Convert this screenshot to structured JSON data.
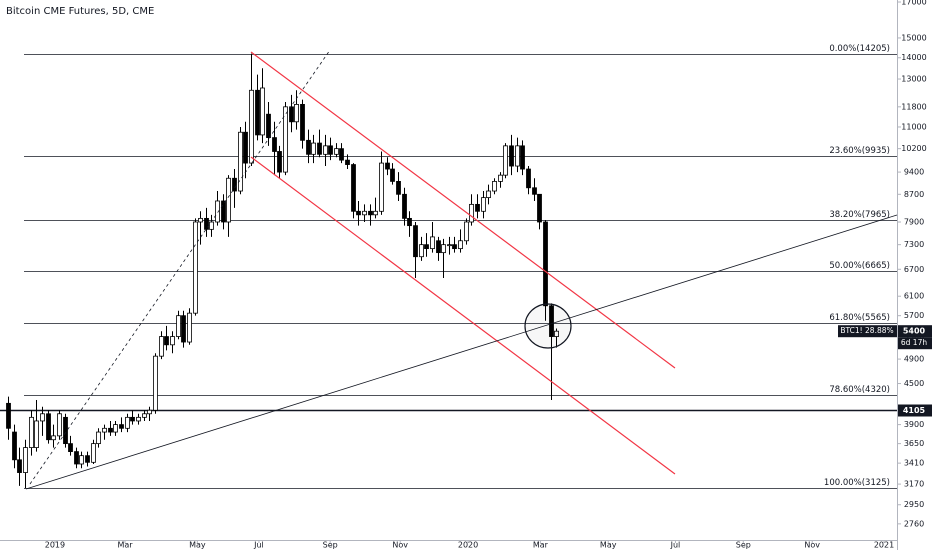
{
  "chart_data": {
    "type": "candlestick",
    "title": "Bitcoin CME Futures, 5D, CME",
    "log_scale": true,
    "up_color": "#ffffff",
    "down_color": "#000000",
    "edge_color": "#000000",
    "xlim": [
      -1.42,
      157.3
    ],
    "ylim": [
      2609,
      17120
    ],
    "xticks": [
      {
        "value": 8.3,
        "label": "2019"
      },
      {
        "value": 20.7,
        "label": "Mar"
      },
      {
        "value": 33.5,
        "label": "May"
      },
      {
        "value": 44.4,
        "label": "Jul"
      },
      {
        "value": 57.0,
        "label": "Sep"
      },
      {
        "value": 69.4,
        "label": "Nov"
      },
      {
        "value": 81.4,
        "label": "2020"
      },
      {
        "value": 94.2,
        "label": "Mar"
      },
      {
        "value": 106.2,
        "label": "May"
      },
      {
        "value": 118.1,
        "label": "Jul"
      },
      {
        "value": 130.1,
        "label": "Sep"
      },
      {
        "value": 142.3,
        "label": "Nov"
      },
      {
        "value": 155.0,
        "label": "2021"
      }
    ],
    "yticks": [
      2760,
      2950,
      3170,
      3410,
      3650,
      3900,
      4500,
      4900,
      5300,
      5700,
      6100,
      6700,
      7300,
      7900,
      8700,
      9400,
      10200,
      11000,
      11800,
      13000,
      14000,
      15000,
      17000
    ],
    "open": [
      4200,
      3800,
      3450,
      3300,
      3600,
      3600,
      3950,
      4050,
      3700,
      3750,
      4000,
      3650,
      3550,
      3400,
      3500,
      3420,
      3650,
      3800,
      3850,
      3800,
      3900,
      3850,
      4000,
      3950,
      4000,
      4050,
      4100,
      4950,
      5300,
      5150,
      5300,
      5700,
      5200,
      5750,
      7900,
      8000,
      7700,
      7900,
      8500,
      7900,
      9200,
      8800,
      10800,
      9700,
      12500,
      10700,
      11500,
      10600,
      10100,
      9400,
      11800,
      11200,
      11900,
      10500,
      10000,
      10400,
      10000,
      10300,
      10000,
      10200,
      9800,
      9650,
      8200,
      8100,
      8200,
      8100,
      8200,
      9700,
      9500,
      9100,
      8700,
      8000,
      7800,
      7000,
      7300,
      7200,
      7400,
      7100,
      7300,
      7300,
      7200,
      7400,
      7900,
      8400,
      8200,
      8600,
      8800,
      9100,
      9300,
      10300,
      9600,
      10300,
      9500,
      8900,
      8700,
      7900,
      5900,
      5300
    ],
    "high": [
      4300,
      3900,
      3600,
      3700,
      4100,
      4250,
      4150,
      4100,
      3900,
      4100,
      4050,
      3750,
      3600,
      3550,
      3550,
      3700,
      3850,
      3900,
      3950,
      3950,
      4000,
      4050,
      4100,
      4050,
      4100,
      4150,
      5000,
      5400,
      5500,
      5400,
      5800,
      5800,
      5850,
      8000,
      8200,
      8300,
      8100,
      8800,
      8700,
      9300,
      9500,
      11000,
      11200,
      14205,
      13200,
      13500,
      12000,
      11200,
      10300,
      12000,
      12300,
      12500,
      12100,
      10900,
      10700,
      10900,
      10700,
      10600,
      10400,
      10400,
      10000,
      9700,
      8500,
      8400,
      8400,
      8600,
      10100,
      9900,
      9700,
      9400,
      8900,
      8200,
      7900,
      7500,
      7600,
      7900,
      7500,
      7450,
      7500,
      7500,
      7700,
      8000,
      8700,
      8700,
      8800,
      9000,
      9200,
      9400,
      10400,
      10700,
      10600,
      10500,
      9600,
      9200,
      8700,
      7950,
      5950,
      5450
    ],
    "low": [
      3700,
      3350,
      3150,
      3125,
      3500,
      3550,
      3750,
      3650,
      3600,
      3700,
      3600,
      3500,
      3350,
      3350,
      3370,
      3400,
      3600,
      3700,
      3750,
      3750,
      3800,
      3800,
      3900,
      3900,
      3950,
      3950,
      4050,
      4900,
      5050,
      5000,
      5250,
      5100,
      5150,
      5700,
      7300,
      7500,
      7500,
      7800,
      7700,
      7500,
      8300,
      8700,
      9200,
      9600,
      10500,
      10400,
      10300,
      9300,
      9200,
      9300,
      10800,
      10900,
      10200,
      9700,
      9700,
      9900,
      9600,
      9800,
      9900,
      9700,
      9500,
      8000,
      7800,
      7900,
      7800,
      8000,
      8100,
      9300,
      9000,
      8500,
      7800,
      7500,
      6500,
      6900,
      7000,
      7100,
      6900,
      6500,
      7050,
      7100,
      7100,
      7300,
      7800,
      8000,
      8000,
      8400,
      8700,
      8900,
      9200,
      9300,
      9400,
      9300,
      8700,
      8500,
      7700,
      5600,
      4250,
      5100
    ],
    "close": [
      3850,
      3450,
      3300,
      3600,
      4000,
      3950,
      4050,
      3700,
      3750,
      4050,
      3650,
      3550,
      3400,
      3500,
      3420,
      3650,
      3800,
      3850,
      3800,
      3900,
      3850,
      4000,
      3950,
      4000,
      4050,
      4100,
      4950,
      5300,
      5150,
      5300,
      5700,
      5200,
      5750,
      7900,
      8000,
      7700,
      7900,
      8500,
      7900,
      9200,
      8800,
      10800,
      9700,
      12500,
      10700,
      12600,
      10600,
      10100,
      9400,
      11800,
      11200,
      11900,
      10500,
      10000,
      10400,
      10000,
      10300,
      10000,
      10200,
      9800,
      9650,
      8200,
      8100,
      8200,
      8100,
      8200,
      9700,
      9500,
      9100,
      8700,
      8000,
      7800,
      7000,
      7300,
      7200,
      7500,
      7100,
      7300,
      7300,
      7200,
      7400,
      7900,
      8400,
      8200,
      8600,
      8800,
      9100,
      9300,
      10300,
      9600,
      10300,
      9500,
      8900,
      8700,
      7900,
      5900,
      5300,
      5400
    ],
    "fib_levels": [
      {
        "value": 14205,
        "label": "0.00%(14205)"
      },
      {
        "value": 9935,
        "label": "23.60%(9935)"
      },
      {
        "value": 7965,
        "label": "38.20%(7965)"
      },
      {
        "value": 6665,
        "label": "50.00%(6665)"
      },
      {
        "value": 5565,
        "label": "61.80%(5565)"
      },
      {
        "value": 4320,
        "label": "78.60%(4320)"
      },
      {
        "value": 3125,
        "label": "100.00%(3125)"
      }
    ],
    "horizontal_line": 4105,
    "symbol_change": "BTC1! 28.88%",
    "last_price": 5400,
    "countdown": "6d 17h"
  }
}
